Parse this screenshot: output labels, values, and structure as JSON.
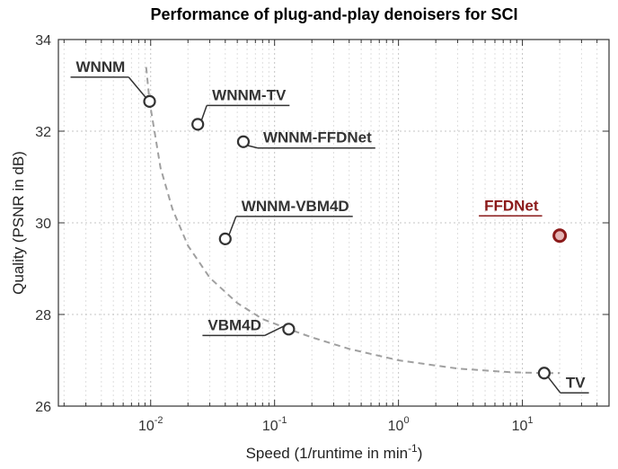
{
  "chart_data": {
    "type": "scatter",
    "title": "Performance of plug-and-play denoisers for SCI",
    "xlabel": "Speed (1/runtime in min",
    "xlabel_sup": "-1",
    "xlabel_suffix": ")",
    "ylabel": "Quality (PSNR in dB)",
    "xscale": "log",
    "xlim": [
      0.0018,
      50
    ],
    "ylim": [
      26,
      34
    ],
    "x_ticks": [
      {
        "base": "10",
        "exp": "-2",
        "value": 0.01
      },
      {
        "base": "10",
        "exp": "-1",
        "value": 0.1
      },
      {
        "base": "10",
        "exp": "0",
        "value": 1
      },
      {
        "base": "10",
        "exp": "1",
        "value": 10
      }
    ],
    "y_ticks": [
      "26",
      "28",
      "30",
      "32",
      "34"
    ],
    "grid": true,
    "points": [
      {
        "label": "WNNM",
        "x": 0.0098,
        "y": 32.65,
        "color": "#333333",
        "highlight": false
      },
      {
        "label": "WNNM-TV",
        "x": 0.024,
        "y": 32.15,
        "color": "#333333",
        "highlight": false
      },
      {
        "label": "WNNM-FFDNet",
        "x": 0.056,
        "y": 31.77,
        "color": "#333333",
        "highlight": false
      },
      {
        "label": "WNNM-VBM4D",
        "x": 0.04,
        "y": 29.65,
        "color": "#333333",
        "highlight": false
      },
      {
        "label": "FFDNet",
        "x": 20,
        "y": 29.72,
        "color": "#8b1a1a",
        "highlight": true
      },
      {
        "label": "VBM4D",
        "x": 0.13,
        "y": 27.68,
        "color": "#333333",
        "highlight": false
      },
      {
        "label": "TV",
        "x": 15,
        "y": 26.72,
        "color": "#333333",
        "highlight": false
      }
    ],
    "trend_curve": [
      [
        0.0092,
        33.4
      ],
      [
        0.0098,
        32.65
      ],
      [
        0.012,
        31.2
      ],
      [
        0.015,
        30.3
      ],
      [
        0.02,
        29.5
      ],
      [
        0.03,
        28.8
      ],
      [
        0.05,
        28.25
      ],
      [
        0.08,
        27.9
      ],
      [
        0.13,
        27.68
      ],
      [
        0.2,
        27.5
      ],
      [
        0.4,
        27.25
      ],
      [
        1,
        27.0
      ],
      [
        3,
        26.82
      ],
      [
        8,
        26.74
      ],
      [
        15,
        26.72
      ],
      [
        20,
        26.72
      ]
    ]
  }
}
